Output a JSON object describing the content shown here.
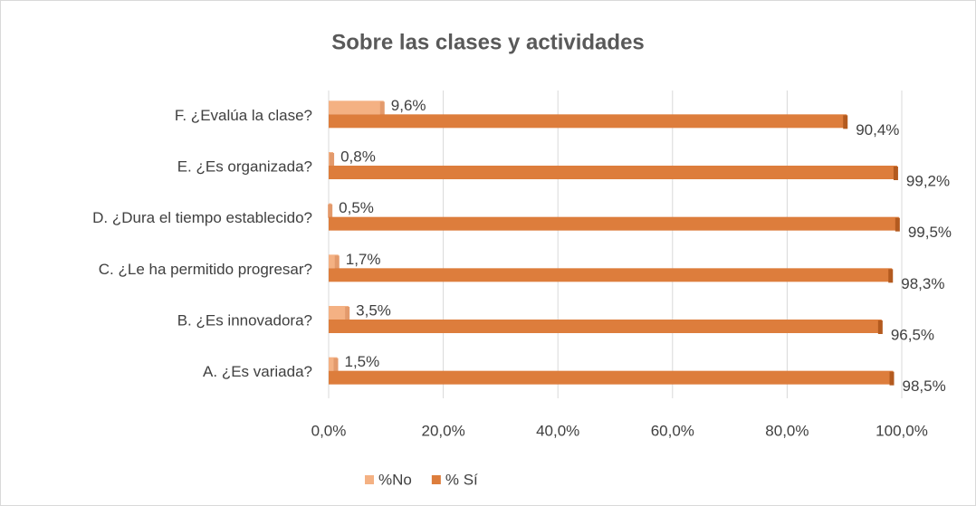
{
  "chart_data": {
    "type": "hbar",
    "title": "Sobre las clases y actividades",
    "categories": [
      "A. ¿Es variada?",
      "B. ¿Es innovadora?",
      "C. ¿Le ha permitido progresar?",
      "D. ¿Dura el tiempo establecido?",
      "E. ¿Es organizada?",
      "F. ¿Evalúa la clase?"
    ],
    "series": [
      {
        "name": "%No",
        "color": "#f4b183",
        "values": [
          1.5,
          3.5,
          1.7,
          0.5,
          0.8,
          9.6
        ],
        "value_labels": [
          "1,5%",
          "3,5%",
          "1,7%",
          "0,5%",
          "0,8%",
          "9,6%"
        ]
      },
      {
        "name": "% Sí",
        "color": "#dd7d3c",
        "values": [
          98.5,
          96.5,
          98.3,
          99.5,
          99.2,
          90.4
        ],
        "value_labels": [
          "98,5%",
          "96,5%",
          "98,3%",
          "99,5%",
          "99,2%",
          "90,4%"
        ]
      }
    ],
    "xlim": [
      0,
      100
    ],
    "xticks": [
      {
        "value": 0,
        "label": "0,0%"
      },
      {
        "value": 20,
        "label": "20,0%"
      },
      {
        "value": 40,
        "label": "40,0%"
      },
      {
        "value": 60,
        "label": "60,0%"
      },
      {
        "value": 80,
        "label": "80,0%"
      },
      {
        "value": 100,
        "label": "100,0%"
      }
    ],
    "grid": true,
    "legend": "bottom"
  }
}
